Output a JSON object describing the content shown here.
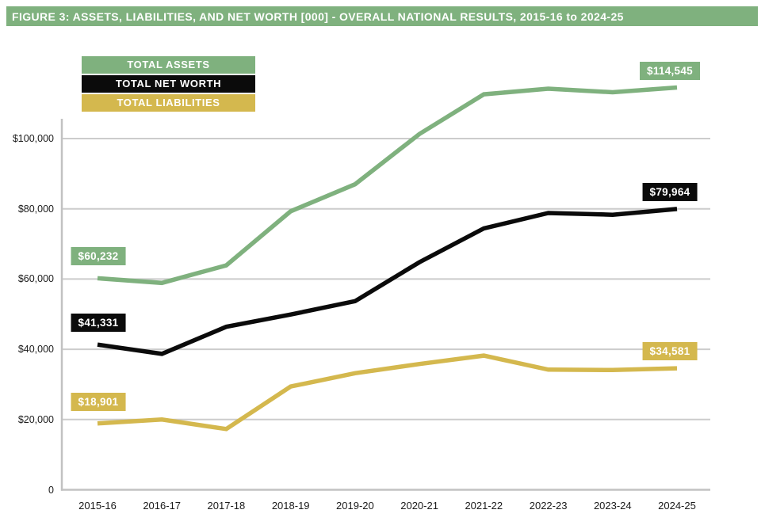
{
  "title": "FIGURE 3: ASSETS, LIABILITIES, AND NET WORTH [000] - OVERALL NATIONAL RESULTS, 2015-16 to 2024-25",
  "colors": {
    "assets_green": "#7fb17e",
    "net_worth_black": "#0b0b0b",
    "liabilities_gold": "#d4b84e",
    "grid": "#cccccc",
    "axis": "#c2c2c2",
    "title_bg": "#7fb17e",
    "tick_text": "#1a1a1a"
  },
  "chart_data": {
    "type": "line",
    "title": "FIGURE 3: ASSETS, LIABILITIES, AND NET WORTH [000] - OVERALL NATIONAL RESULTS, 2015-16 to 2024-25",
    "categories": [
      "2015-16",
      "2016-17",
      "2017-18",
      "2018-19",
      "2019-20",
      "2020-21",
      "2021-22",
      "2022-23",
      "2023-24",
      "2024-25"
    ],
    "series": [
      {
        "name": "TOTAL ASSETS",
        "color": "#7fb17e",
        "values": [
          60232,
          58900,
          63900,
          79300,
          87000,
          101300,
          112600,
          114200,
          113200,
          114545
        ],
        "first_point_label": "$60,232",
        "last_point_label": "$114,545"
      },
      {
        "name": "TOTAL NET WORTH",
        "color": "#0b0b0b",
        "values": [
          41331,
          38700,
          46400,
          49900,
          53700,
          64800,
          74400,
          78800,
          78300,
          79964
        ],
        "first_point_label": "$41,331",
        "last_point_label": "$79,964"
      },
      {
        "name": "TOTAL LIABILITIES",
        "color": "#d4b84e",
        "values": [
          18901,
          20000,
          17300,
          29400,
          33200,
          35800,
          38200,
          34200,
          34100,
          34581
        ],
        "first_point_label": "$18,901",
        "last_point_label": "$34,581"
      }
    ],
    "yticks": [
      {
        "value": 0,
        "label": "0"
      },
      {
        "value": 20000,
        "label": "$20,000"
      },
      {
        "value": 40000,
        "label": "$40,000"
      },
      {
        "value": 60000,
        "label": "$60,000"
      },
      {
        "value": 80000,
        "label": "$80,000"
      },
      {
        "value": 100000,
        "label": "$100,000"
      }
    ],
    "ylim": [
      0,
      118000
    ],
    "xlabel": "",
    "ylabel": "",
    "grid": "horizontal",
    "legend_position": "top-left"
  }
}
